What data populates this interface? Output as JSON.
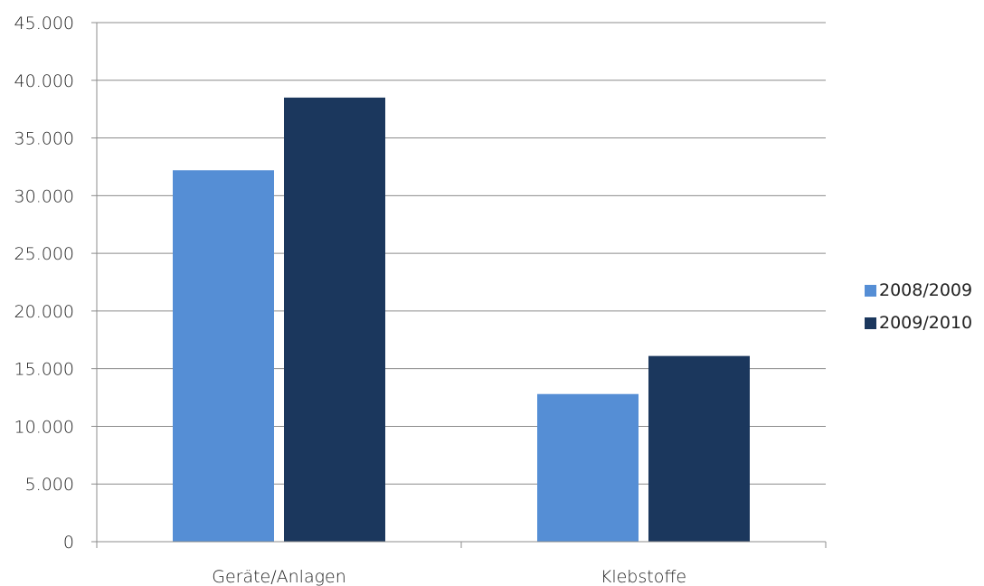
{
  "chart_data": {
    "type": "bar",
    "categories": [
      "Geräte/Anlagen",
      "Klebstoffe"
    ],
    "series": [
      {
        "name": "2008/2009",
        "values": [
          32200,
          12800
        ],
        "color": "#558ed5"
      },
      {
        "name": "2009/2010",
        "values": [
          38500,
          16100
        ],
        "color": "#1b375d"
      }
    ],
    "ylim": [
      0,
      45000
    ],
    "yticks": [
      "0",
      "5.000",
      "10.000",
      "15.000",
      "20.000",
      "25.000",
      "30.000",
      "35.000",
      "40.000",
      "45.000"
    ],
    "ytick_values": [
      0,
      5000,
      10000,
      15000,
      20000,
      25000,
      30000,
      35000,
      40000,
      45000
    ],
    "title": "",
    "xlabel": "",
    "ylabel": "",
    "grid": true,
    "legend_position": "right"
  }
}
